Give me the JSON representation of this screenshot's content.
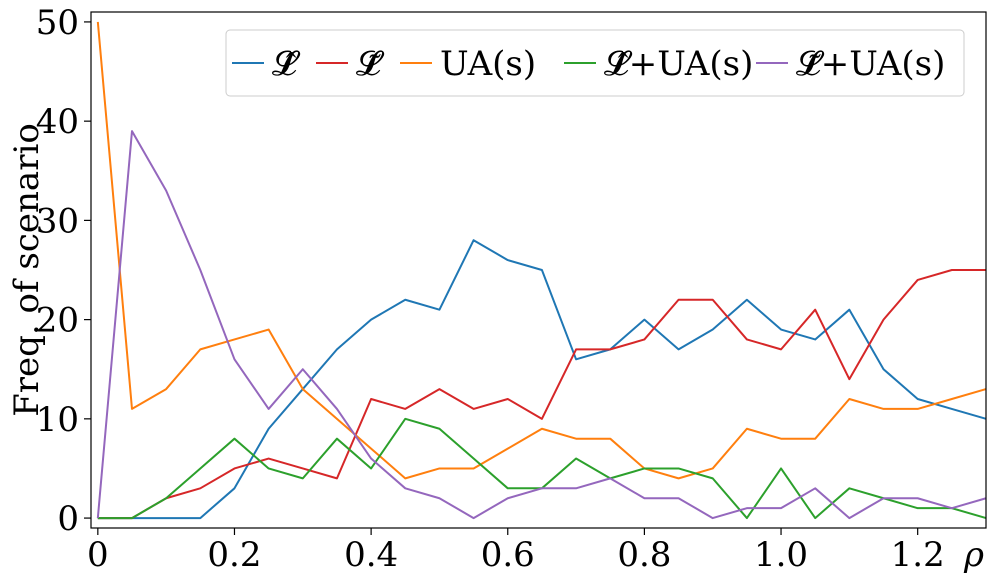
{
  "chart_data": {
    "type": "line",
    "xlabel": "ρ",
    "ylabel": "Freq. of scenario",
    "xlim": [
      -0.01,
      1.3
    ],
    "ylim": [
      -1,
      51
    ],
    "x_ticks": [
      0,
      0.2,
      0.4,
      0.6,
      0.8,
      1.0,
      1.2
    ],
    "x_tick_labels": [
      "0",
      "0.2",
      "0.4",
      "0.6",
      "0.8",
      "1.0",
      "1.2"
    ],
    "y_ticks": [
      0,
      10,
      20,
      30,
      40,
      50
    ],
    "y_tick_labels": [
      "0",
      "10",
      "20",
      "30",
      "40",
      "50"
    ],
    "grid": false,
    "legend_position": "top-right",
    "x": [
      0,
      0.05,
      0.1,
      0.15,
      0.2,
      0.25,
      0.3,
      0.35,
      0.4,
      0.45,
      0.5,
      0.55,
      0.6,
      0.65,
      0.7,
      0.75,
      0.8,
      0.85,
      0.9,
      0.95,
      1.0,
      1.05,
      1.1,
      1.15,
      1.2,
      1.25,
      1.3
    ],
    "series": [
      {
        "name": "𝓛̂",
        "color": "#1f77b4",
        "values": [
          0,
          0,
          0,
          0,
          3,
          9,
          13,
          17,
          20,
          22,
          21,
          28,
          26,
          25,
          16,
          17,
          20,
          17,
          19,
          22,
          19,
          18,
          21,
          15,
          12,
          11,
          10
        ]
      },
      {
        "name": "𝓛̃",
        "color": "#d62728",
        "values": [
          0,
          0,
          2,
          3,
          5,
          6,
          5,
          4,
          12,
          11,
          13,
          11,
          12,
          10,
          17,
          17,
          18,
          22,
          22,
          18,
          17,
          21,
          14,
          20,
          24,
          25,
          25
        ]
      },
      {
        "name": "UA(s)",
        "color": "#ff7f0e",
        "values": [
          50,
          11,
          13,
          17,
          18,
          19,
          13,
          10,
          7,
          4,
          5,
          5,
          7,
          9,
          8,
          8,
          5,
          4,
          5,
          9,
          8,
          8,
          12,
          11,
          11,
          12,
          13
        ]
      },
      {
        "name": "𝓛̂+UA(s)",
        "color": "#2ca02c",
        "values": [
          0,
          0,
          2,
          5,
          8,
          5,
          4,
          8,
          5,
          10,
          9,
          6,
          3,
          3,
          6,
          4,
          5,
          5,
          4,
          0,
          5,
          0,
          3,
          2,
          1,
          1,
          0
        ]
      },
      {
        "name": "𝓛̃+UA(s)",
        "color": "#9467bd",
        "values": [
          0,
          39,
          33,
          25,
          16,
          11,
          15,
          11,
          6,
          3,
          2,
          0,
          2,
          3,
          3,
          4,
          2,
          2,
          0,
          1,
          1,
          3,
          0,
          2,
          2,
          1,
          2
        ]
      }
    ]
  }
}
